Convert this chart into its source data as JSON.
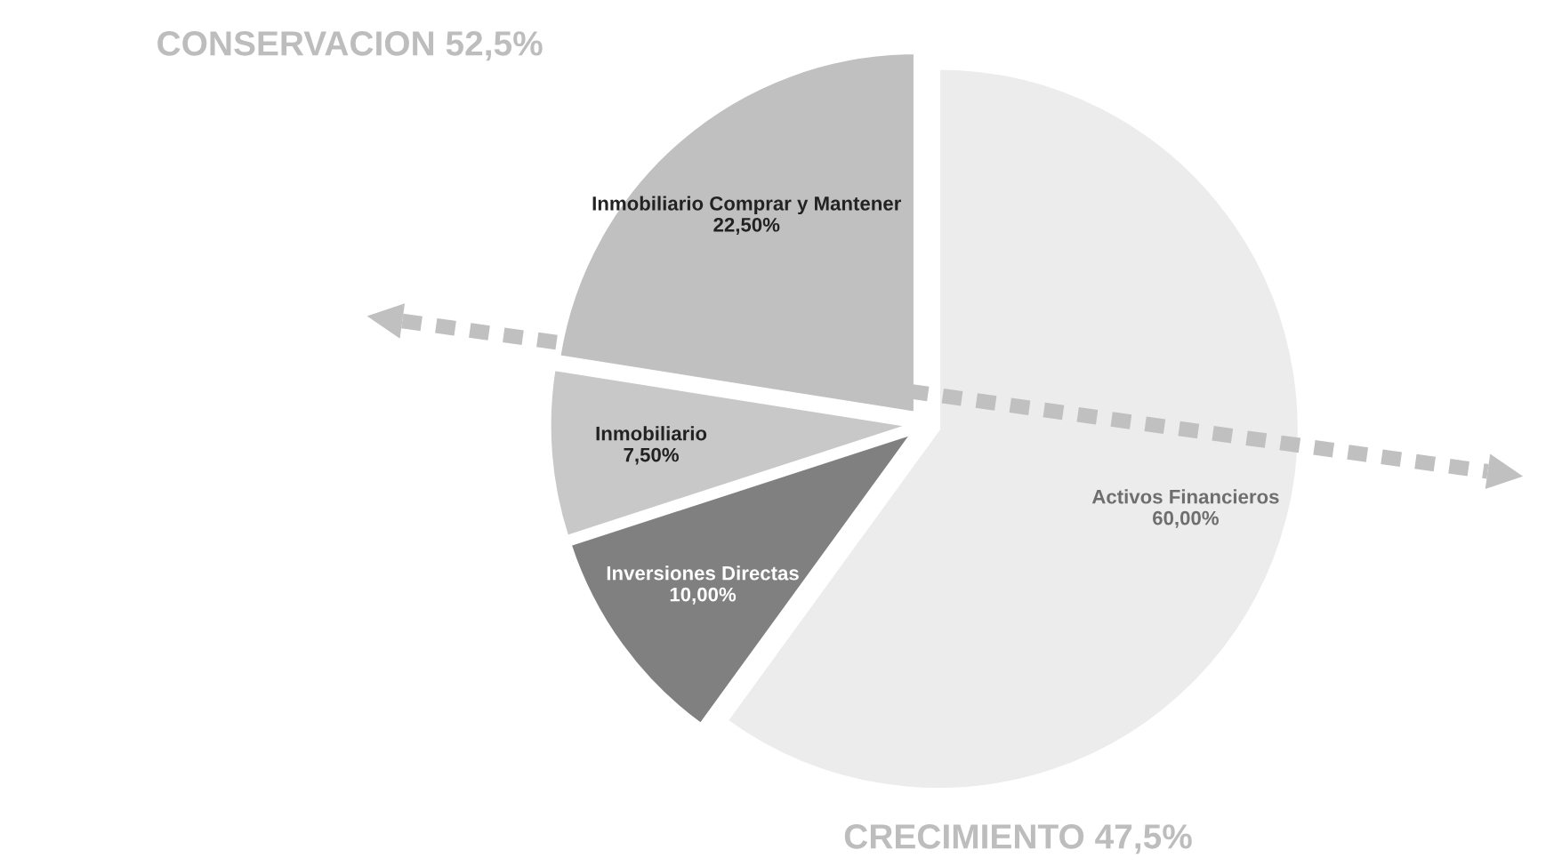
{
  "chart_data": {
    "type": "pie",
    "categories": [
      "Activos Financieros",
      "Inversiones Directas",
      "Inmobiliario",
      "Inmobiliario Comprar y Mantener"
    ],
    "values": [
      60,
      10,
      7.5,
      22.5
    ],
    "value_labels": [
      "60,00%",
      "10,00%",
      "7,50%",
      "22,50%"
    ],
    "colors": [
      "#ececec",
      "#808080",
      "#c8c8c8",
      "#c0c0c0"
    ],
    "annotations": [
      "CONSERVACION 52,5%",
      "CRECIMIENTO 47,5%"
    ]
  }
}
